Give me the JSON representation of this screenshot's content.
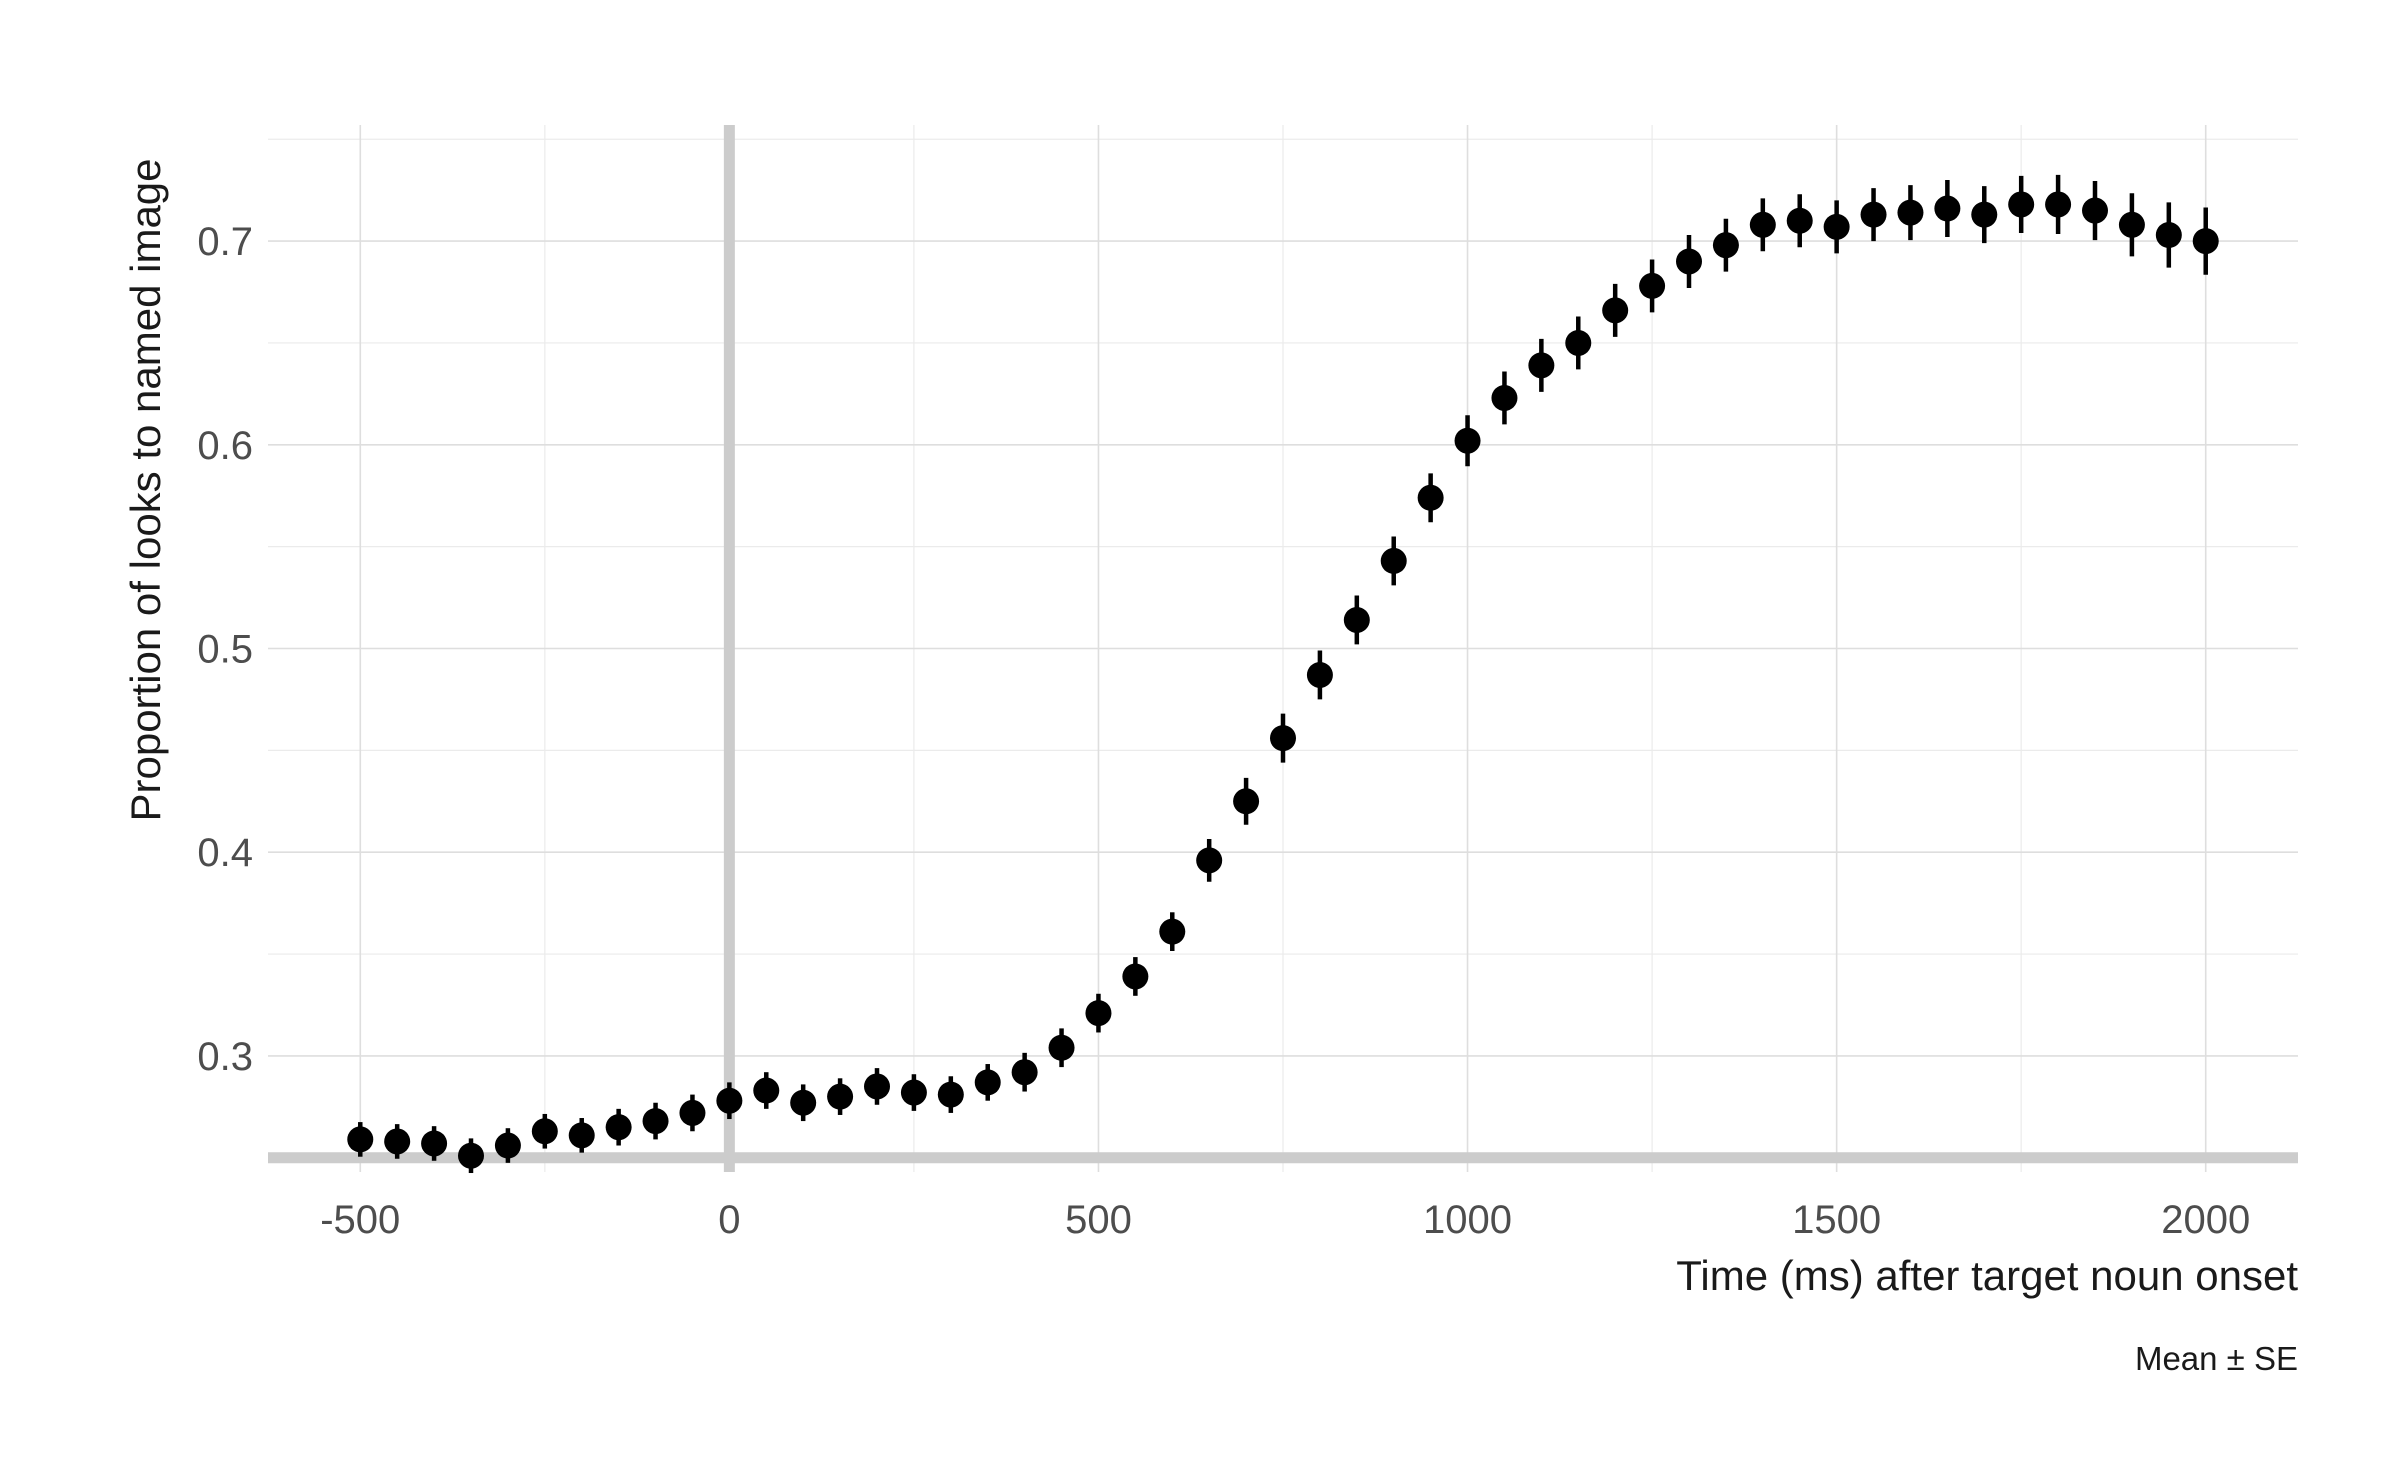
{
  "chart_data": {
    "type": "scatter",
    "title": "",
    "xlabel": "Time (ms) after target noun onset",
    "ylabel": "Proportion of looks to named image",
    "caption": "Mean ± SE",
    "xlim": [
      -625,
      2125
    ],
    "ylim": [
      0.243,
      0.757
    ],
    "x_ticks": [
      -500,
      0,
      500,
      1000,
      1500,
      2000
    ],
    "x_tick_labels": [
      "-500",
      "0",
      "500",
      "1000",
      "1500",
      "2000"
    ],
    "y_ticks": [
      0.3,
      0.4,
      0.5,
      0.6,
      0.7
    ],
    "y_tick_labels": [
      "0.3",
      "0.4",
      "0.5",
      "0.6",
      "0.7"
    ],
    "reference_lines": {
      "x": 0,
      "y": 0.25
    },
    "grid": true,
    "point_color": "#000000",
    "reference_line_color": "#cccccc",
    "series": [
      {
        "x": [
          -500,
          -450,
          -400,
          -350,
          -300,
          -250,
          -200,
          -150,
          -100,
          -50,
          0,
          50,
          100,
          150,
          200,
          250,
          300,
          350,
          400,
          450,
          500,
          550,
          600,
          650,
          700,
          750,
          800,
          850,
          900,
          950,
          1000,
          1050,
          1100,
          1150,
          1200,
          1250,
          1300,
          1350,
          1400,
          1450,
          1500,
          1550,
          1600,
          1650,
          1700,
          1750,
          1800,
          1850,
          1900,
          1950,
          2000
        ],
        "y": [
          0.259,
          0.258,
          0.257,
          0.251,
          0.256,
          0.263,
          0.261,
          0.265,
          0.268,
          0.272,
          0.278,
          0.283,
          0.277,
          0.28,
          0.285,
          0.282,
          0.281,
          0.287,
          0.292,
          0.304,
          0.321,
          0.339,
          0.361,
          0.396,
          0.425,
          0.456,
          0.487,
          0.514,
          0.543,
          0.574,
          0.602,
          0.623,
          0.639,
          0.65,
          0.666,
          0.678,
          0.69,
          0.698,
          0.708,
          0.71,
          0.707,
          0.713,
          0.714,
          0.716,
          0.713,
          0.718,
          0.718,
          0.715,
          0.708,
          0.703,
          0.7
        ],
        "se": [
          0.0085,
          0.0085,
          0.0085,
          0.0085,
          0.0085,
          0.0085,
          0.0085,
          0.009,
          0.009,
          0.009,
          0.009,
          0.009,
          0.009,
          0.009,
          0.009,
          0.009,
          0.009,
          0.009,
          0.0095,
          0.0095,
          0.0095,
          0.0095,
          0.0095,
          0.0105,
          0.0115,
          0.012,
          0.012,
          0.012,
          0.012,
          0.012,
          0.0125,
          0.013,
          0.013,
          0.013,
          0.013,
          0.013,
          0.013,
          0.013,
          0.013,
          0.013,
          0.013,
          0.013,
          0.0135,
          0.014,
          0.014,
          0.014,
          0.0145,
          0.0145,
          0.0155,
          0.016,
          0.0165
        ]
      }
    ]
  }
}
